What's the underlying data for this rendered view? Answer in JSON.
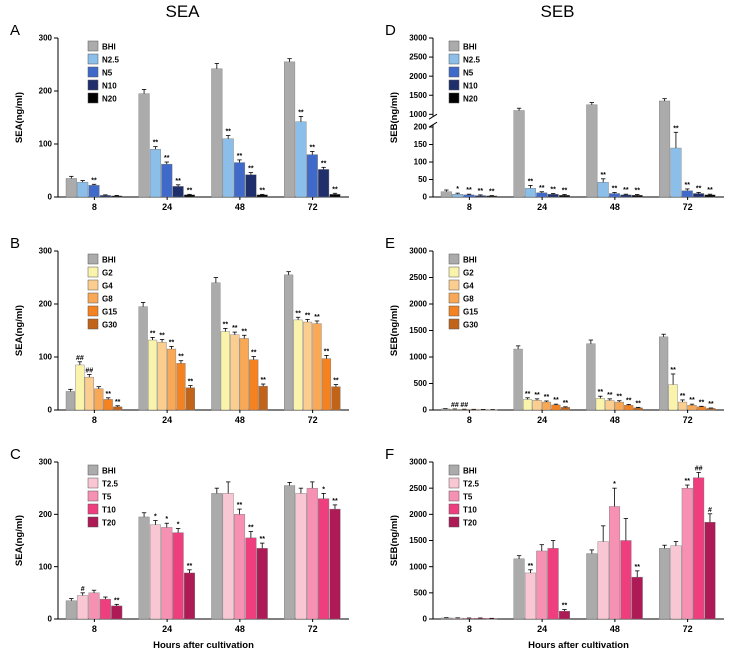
{
  "figure": {
    "column_titles": [
      {
        "text": "SEA"
      },
      {
        "text": "SEB"
      }
    ],
    "xlabel": "Hours after cultivation"
  },
  "chart_data": [
    {
      "type": "bar",
      "panel": "A",
      "ylabel": "SEA(ng/ml)",
      "ylim": [
        0,
        300
      ],
      "yticks": [
        0,
        100,
        200,
        300
      ],
      "categories": [
        "8",
        "24",
        "48",
        "72"
      ],
      "legend_dx": 30,
      "xlabel": "",
      "series": [
        {
          "name": "BHI",
          "color": "#ABABAB",
          "values": [
            35,
            195,
            242,
            255
          ],
          "errors": [
            4,
            8,
            10,
            6
          ],
          "sig": [
            "",
            "",
            "",
            ""
          ]
        },
        {
          "name": "N2.5",
          "color": "#8BBFEA",
          "values": [
            28,
            90,
            110,
            142
          ],
          "errors": [
            3,
            5,
            6,
            10
          ],
          "sig": [
            "",
            "**",
            "**",
            "**"
          ]
        },
        {
          "name": "N5",
          "color": "#3F6AC9",
          "values": [
            22,
            62,
            65,
            80
          ],
          "errors": [
            2,
            4,
            5,
            6
          ],
          "sig": [
            "**",
            "**",
            "**",
            "**"
          ]
        },
        {
          "name": "N10",
          "color": "#1E2F6B",
          "values": [
            3,
            20,
            42,
            52
          ],
          "errors": [
            1,
            3,
            4,
            4
          ],
          "sig": [
            "",
            "**",
            "**",
            "**"
          ]
        },
        {
          "name": "N20",
          "color": "#000000",
          "values": [
            2,
            4,
            4,
            5
          ],
          "errors": [
            1,
            1,
            1,
            2
          ],
          "sig": [
            "",
            "**",
            "**",
            "**"
          ]
        }
      ]
    },
    {
      "type": "bar",
      "panel": "B",
      "ylabel": "SEA(ng/ml)",
      "ylim": [
        0,
        300
      ],
      "yticks": [
        0,
        100,
        200,
        300
      ],
      "categories": [
        "8",
        "24",
        "48",
        "72"
      ],
      "legend_dx": 30,
      "xlabel": "",
      "series": [
        {
          "name": "BHI",
          "color": "#ABABAB",
          "values": [
            35,
            195,
            240,
            255
          ],
          "errors": [
            4,
            8,
            10,
            6
          ],
          "sig": [
            "",
            "",
            "",
            ""
          ]
        },
        {
          "name": "G2",
          "color": "#FAF3AC",
          "values": [
            85,
            132,
            148,
            170
          ],
          "errors": [
            6,
            5,
            6,
            5
          ],
          "sig": [
            "##",
            "**",
            "**",
            "**"
          ]
        },
        {
          "name": "G4",
          "color": "#FBCE90",
          "values": [
            62,
            128,
            142,
            166
          ],
          "errors": [
            5,
            5,
            5,
            5
          ],
          "sig": [
            "##",
            "**",
            "**",
            "**"
          ]
        },
        {
          "name": "G8",
          "color": "#F9A856",
          "values": [
            40,
            115,
            135,
            163
          ],
          "errors": [
            4,
            5,
            6,
            5
          ],
          "sig": [
            "",
            "**",
            "**",
            "**"
          ]
        },
        {
          "name": "G15",
          "color": "#F58220",
          "values": [
            20,
            88,
            95,
            97
          ],
          "errors": [
            3,
            5,
            6,
            6
          ],
          "sig": [
            "**",
            "**",
            "**",
            "**"
          ]
        },
        {
          "name": "G30",
          "color": "#C2631A",
          "values": [
            6,
            42,
            45,
            44
          ],
          "errors": [
            2,
            4,
            4,
            4
          ],
          "sig": [
            "**",
            "**",
            "**",
            "**"
          ]
        }
      ]
    },
    {
      "type": "bar",
      "panel": "C",
      "ylabel": "SEA(ng/ml)",
      "ylim": [
        0,
        300
      ],
      "yticks": [
        0,
        100,
        200,
        300
      ],
      "categories": [
        "8",
        "24",
        "48",
        "72"
      ],
      "legend_dx": 30,
      "xlabel": "Hours after cultivation",
      "series": [
        {
          "name": "BHI",
          "color": "#ABABAB",
          "values": [
            35,
            195,
            240,
            255
          ],
          "errors": [
            4,
            8,
            10,
            6
          ],
          "sig": [
            "",
            "",
            "",
            ""
          ]
        },
        {
          "name": "T2.5",
          "color": "#F9C7D3",
          "values": [
            45,
            180,
            240,
            240
          ],
          "errors": [
            5,
            8,
            22,
            10
          ],
          "sig": [
            "#",
            "*",
            "",
            ""
          ]
        },
        {
          "name": "T5",
          "color": "#F791B4",
          "values": [
            50,
            175,
            200,
            250
          ],
          "errors": [
            5,
            8,
            10,
            12
          ],
          "sig": [
            "",
            "*",
            "**",
            ""
          ]
        },
        {
          "name": "T10",
          "color": "#EE3E7E",
          "values": [
            38,
            165,
            155,
            230
          ],
          "errors": [
            4,
            8,
            12,
            10
          ],
          "sig": [
            "",
            "*",
            "**",
            "*"
          ]
        },
        {
          "name": "T20",
          "color": "#AD1A56",
          "values": [
            25,
            88,
            135,
            210
          ],
          "errors": [
            3,
            6,
            10,
            8
          ],
          "sig": [
            "**",
            "**",
            "**",
            "**"
          ]
        }
      ]
    },
    {
      "type": "bar",
      "panel": "D",
      "ylabel": "SEB(ng/ml)",
      "ylim": [
        0,
        3000
      ],
      "yticks": [
        0,
        50,
        100,
        150,
        200,
        1000,
        1500,
        2000,
        2500,
        3000
      ],
      "categories": [
        "8",
        "24",
        "48",
        "72"
      ],
      "legend_dx": 16,
      "xlabel": "",
      "scale_break": {
        "segments": [
          {
            "from": 0,
            "to": 200,
            "f0": 0,
            "f1": 0.44
          },
          {
            "from": 200,
            "to": 1000,
            "f0": 0.44,
            "f1": 0.52
          },
          {
            "from": 1000,
            "to": 3000,
            "f0": 0.52,
            "f1": 1
          }
        ],
        "gap_fracs": [
          0.455,
          0.505
        ]
      },
      "series": [
        {
          "name": "BHI",
          "color": "#ABABAB",
          "values": [
            15,
            1100,
            1250,
            1350
          ],
          "errors": [
            5,
            60,
            60,
            60
          ],
          "sig": [
            "",
            "",
            "",
            ""
          ]
        },
        {
          "name": "N2.5",
          "color": "#8BBFEA",
          "values": [
            8,
            25,
            42,
            140
          ],
          "errors": [
            3,
            8,
            10,
            45
          ],
          "sig": [
            "*",
            "**",
            "**",
            "**"
          ]
        },
        {
          "name": "N5",
          "color": "#3F6AC9",
          "values": [
            6,
            12,
            10,
            18
          ],
          "errors": [
            2,
            3,
            3,
            5
          ],
          "sig": [
            "**",
            "**",
            "**",
            "**"
          ]
        },
        {
          "name": "N10",
          "color": "#1E2F6B",
          "values": [
            4,
            8,
            6,
            10
          ],
          "errors": [
            2,
            2,
            2,
            3
          ],
          "sig": [
            "**",
            "**",
            "**",
            "**"
          ]
        },
        {
          "name": "N20",
          "color": "#000000",
          "values": [
            3,
            5,
            5,
            6
          ],
          "errors": [
            1,
            2,
            2,
            2
          ],
          "sig": [
            "**",
            "**",
            "**",
            "**"
          ]
        }
      ]
    },
    {
      "type": "bar",
      "panel": "E",
      "ylabel": "SEB(ng/ml)",
      "ylim": [
        0,
        3000
      ],
      "yticks": [
        0,
        500,
        1000,
        1500,
        2000,
        2500,
        3000
      ],
      "categories": [
        "8",
        "24",
        "48",
        "72"
      ],
      "legend_dx": 16,
      "xlabel": "",
      "series": [
        {
          "name": "BHI",
          "color": "#ABABAB",
          "values": [
            20,
            1150,
            1250,
            1380
          ],
          "errors": [
            5,
            60,
            70,
            50
          ],
          "sig": [
            "",
            "",
            "",
            ""
          ]
        },
        {
          "name": "G2",
          "color": "#FAF3AC",
          "values": [
            15,
            200,
            220,
            480
          ],
          "errors": [
            4,
            30,
            40,
            200
          ],
          "sig": [
            "##",
            "**",
            "**",
            "**"
          ]
        },
        {
          "name": "G4",
          "color": "#FBCE90",
          "values": [
            12,
            185,
            180,
            150
          ],
          "errors": [
            3,
            25,
            30,
            40
          ],
          "sig": [
            "##",
            "**",
            "**",
            "**"
          ]
        },
        {
          "name": "G8",
          "color": "#F9A856",
          "values": [
            10,
            150,
            150,
            90
          ],
          "errors": [
            3,
            20,
            25,
            20
          ],
          "sig": [
            "",
            "**",
            "**",
            "**"
          ]
        },
        {
          "name": "G15",
          "color": "#F58220",
          "values": [
            8,
            95,
            90,
            60
          ],
          "errors": [
            2,
            15,
            15,
            10
          ],
          "sig": [
            "",
            "**",
            "**",
            "**"
          ]
        },
        {
          "name": "G30",
          "color": "#C2631A",
          "values": [
            5,
            50,
            40,
            30
          ],
          "errors": [
            2,
            10,
            10,
            8
          ],
          "sig": [
            "",
            "**",
            "**",
            "**"
          ]
        }
      ]
    },
    {
      "type": "bar",
      "panel": "F",
      "ylabel": "SEB(ng/ml)",
      "ylim": [
        0,
        3000
      ],
      "yticks": [
        0,
        500,
        1000,
        1500,
        2000,
        2500,
        3000
      ],
      "categories": [
        "8",
        "24",
        "48",
        "72"
      ],
      "legend_dx": 16,
      "xlabel": "Hours after cultivation",
      "series": [
        {
          "name": "BHI",
          "color": "#ABABAB",
          "values": [
            20,
            1150,
            1250,
            1350
          ],
          "errors": [
            5,
            60,
            70,
            60
          ],
          "sig": [
            "",
            "",
            "",
            ""
          ]
        },
        {
          "name": "T2.5",
          "color": "#F9C7D3",
          "values": [
            18,
            880,
            1480,
            1400
          ],
          "errors": [
            4,
            60,
            300,
            80
          ],
          "sig": [
            "",
            "**",
            "",
            ""
          ]
        },
        {
          "name": "T5",
          "color": "#F791B4",
          "values": [
            15,
            1300,
            2150,
            2500
          ],
          "errors": [
            4,
            120,
            350,
            60
          ],
          "sig": [
            "",
            "",
            "*",
            "**"
          ]
        },
        {
          "name": "T10",
          "color": "#EE3E7E",
          "values": [
            15,
            1350,
            1500,
            2700
          ],
          "errors": [
            4,
            150,
            420,
            100
          ],
          "sig": [
            "",
            "",
            "",
            "##"
          ]
        },
        {
          "name": "T20",
          "color": "#AD1A56",
          "values": [
            10,
            150,
            800,
            1850
          ],
          "errors": [
            3,
            30,
            120,
            160
          ],
          "sig": [
            "",
            "**",
            "**",
            "#"
          ]
        }
      ]
    }
  ]
}
